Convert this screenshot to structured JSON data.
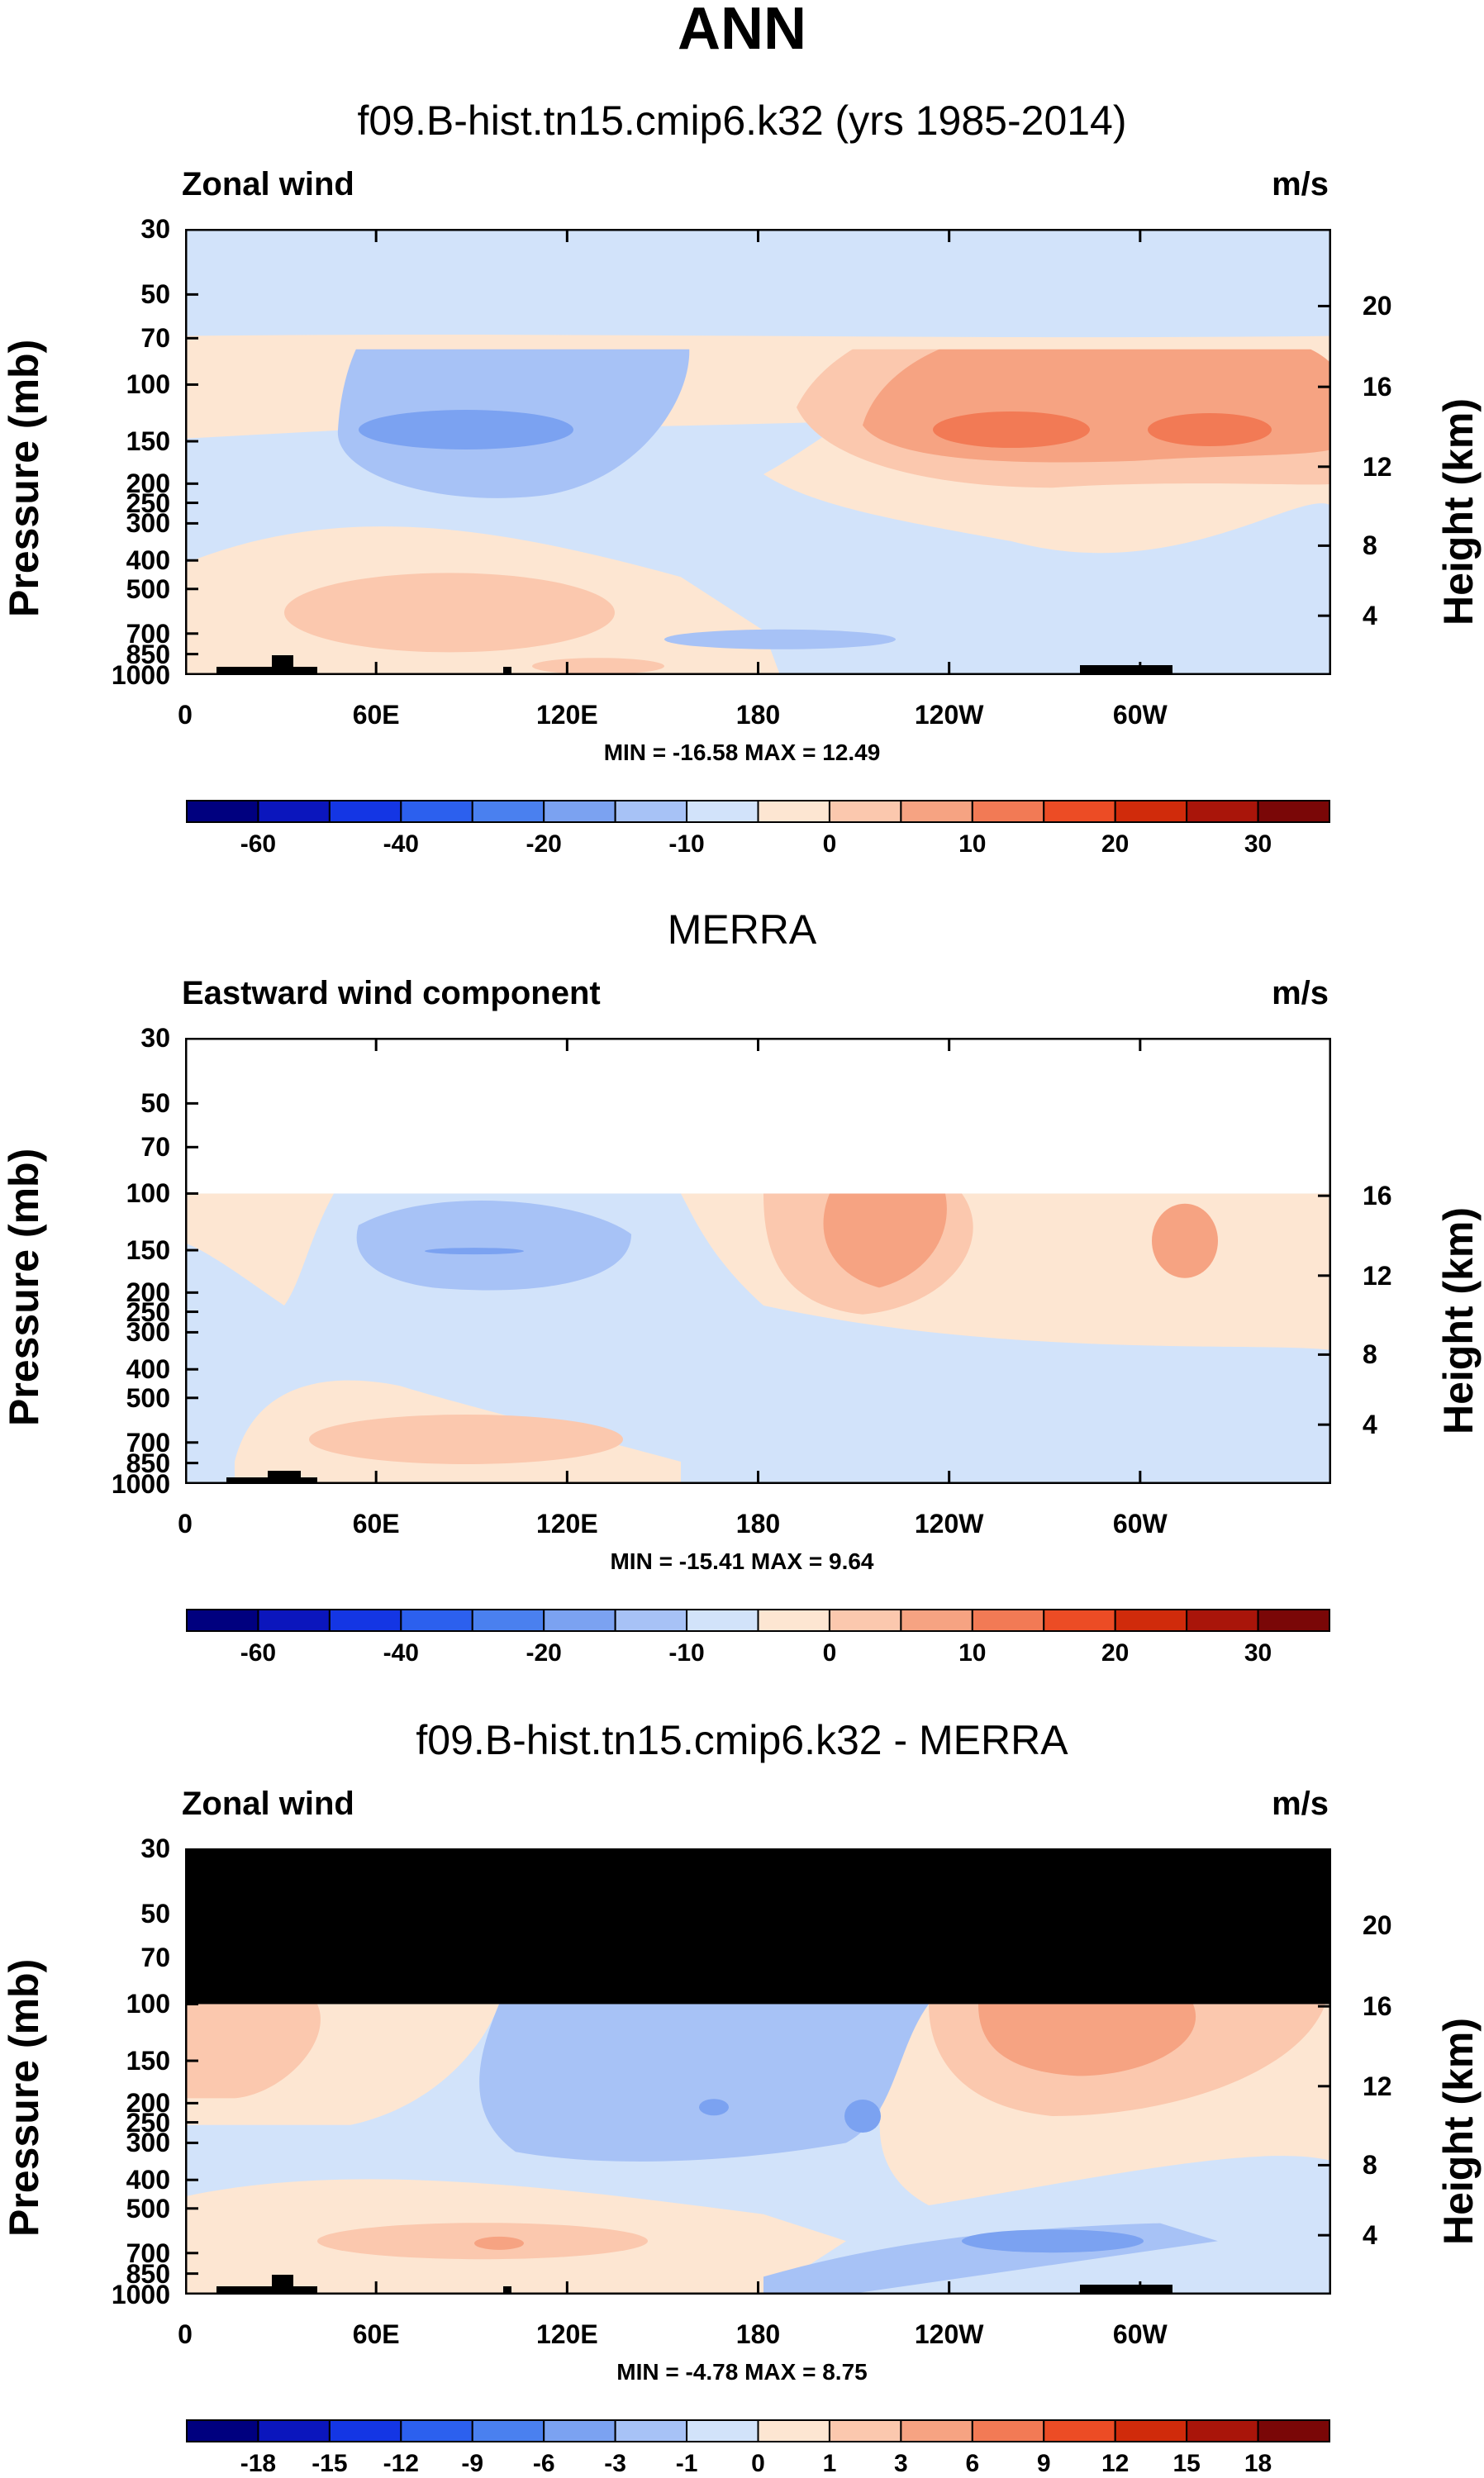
{
  "title": "ANN",
  "colors": {
    "levels": [
      "#00007f",
      "#0b16bd",
      "#1436e4",
      "#2c60ee",
      "#4a80ef",
      "#7ba2f1",
      "#a7c2f6",
      "#d2e3fa",
      "#fde6d2",
      "#fbc8ae",
      "#f6a382",
      "#f27a55",
      "#ec4c25",
      "#d02b0b",
      "#a9150a",
      "#7a0707"
    ]
  },
  "panels": [
    {
      "title": "f09.B-hist.tn15.cmip6.k32 (yrs 1985-2014)",
      "left_label": "Zonal wind",
      "units": "m/s",
      "minmax": "MIN = -16.58  MAX =  12.49",
      "ylabel": "Pressure (mb)",
      "rlabel": "Height (km)",
      "yticks": [
        "30",
        "50",
        "70",
        "100",
        "150",
        "200",
        "250",
        "300",
        "400",
        "500",
        "700",
        "850",
        "1000"
      ],
      "hticks": [
        "20",
        "16",
        "12",
        "8",
        "4"
      ],
      "xticks": [
        "0",
        "60E",
        "120E",
        "180",
        "120W",
        "60W"
      ],
      "colorbar_labels": [
        "-60",
        "-40",
        "-20",
        "-10",
        "0",
        "10",
        "20",
        "30"
      ]
    },
    {
      "title": "MERRA",
      "left_label": "Eastward wind component",
      "units": "m/s",
      "minmax": "MIN = -15.41  MAX =   9.64",
      "ylabel": "Pressure (mb)",
      "rlabel": "Height (km)",
      "yticks": [
        "30",
        "50",
        "70",
        "100",
        "150",
        "200",
        "250",
        "300",
        "400",
        "500",
        "700",
        "850",
        "1000"
      ],
      "hticks": [
        "16",
        "12",
        "8",
        "4"
      ],
      "xticks": [
        "0",
        "60E",
        "120E",
        "180",
        "120W",
        "60W"
      ],
      "colorbar_labels": [
        "-60",
        "-40",
        "-20",
        "-10",
        "0",
        "10",
        "20",
        "30"
      ]
    },
    {
      "title": "f09.B-hist.tn15.cmip6.k32 - MERRA",
      "left_label": "Zonal wind",
      "units": "m/s",
      "minmax": "MIN =  -4.78  MAX =   8.75",
      "ylabel": "Pressure (mb)",
      "rlabel": "Height (km)",
      "yticks": [
        "30",
        "50",
        "70",
        "100",
        "150",
        "200",
        "250",
        "300",
        "400",
        "500",
        "700",
        "850",
        "1000"
      ],
      "hticks": [
        "20",
        "16",
        "12",
        "8",
        "4"
      ],
      "xticks": [
        "0",
        "60E",
        "120E",
        "180",
        "120W",
        "60W"
      ],
      "colorbar_labels": [
        "-18",
        "-15",
        "-12",
        "-9",
        "-6",
        "-3",
        "-1",
        "0",
        "1",
        "3",
        "6",
        "9",
        "12",
        "15",
        "18"
      ]
    }
  ],
  "chart_data": [
    {
      "type": "heatmap",
      "title": "f09.B-hist.tn15.cmip6.k32 (yrs 1985-2014)",
      "variable": "Zonal wind",
      "units": "m/s",
      "x_ticks": [
        "0",
        "60E",
        "120E",
        "180",
        "120W",
        "60W"
      ],
      "y_ticks": [
        "30",
        "50",
        "70",
        "100",
        "150",
        "200",
        "250",
        "300",
        "400",
        "500",
        "700",
        "850",
        "1000"
      ],
      "y_right_ticks": [
        "20",
        "16",
        "12",
        "8",
        "4"
      ],
      "ylabel": "Pressure (mb)",
      "ylabel_right": "Height (km)",
      "min": -16.58,
      "max": 12.49,
      "colorbar_levels": [
        -60,
        -50,
        -40,
        -30,
        -20,
        -15,
        -10,
        -5,
        0,
        5,
        10,
        15,
        20,
        25,
        30
      ],
      "colorbar_labels": [
        "-60",
        "-40",
        "-20",
        "-10",
        "0",
        "10",
        "20",
        "30"
      ]
    },
    {
      "type": "heatmap",
      "title": "MERRA",
      "variable": "Eastward wind component",
      "units": "m/s",
      "x_ticks": [
        "0",
        "60E",
        "120E",
        "180",
        "120W",
        "60W"
      ],
      "y_ticks": [
        "30",
        "50",
        "70",
        "100",
        "150",
        "200",
        "250",
        "300",
        "400",
        "500",
        "700",
        "850",
        "1000"
      ],
      "y_right_ticks": [
        "16",
        "12",
        "8",
        "4"
      ],
      "ylabel": "Pressure (mb)",
      "ylabel_right": "Height (km)",
      "min": -15.41,
      "max": 9.64,
      "colorbar_levels": [
        -60,
        -50,
        -40,
        -30,
        -20,
        -15,
        -10,
        -5,
        0,
        5,
        10,
        15,
        20,
        25,
        30
      ],
      "colorbar_labels": [
        "-60",
        "-40",
        "-20",
        "-10",
        "0",
        "10",
        "20",
        "30"
      ]
    },
    {
      "type": "heatmap",
      "title": "f09.B-hist.tn15.cmip6.k32 - MERRA",
      "variable": "Zonal wind",
      "units": "m/s",
      "x_ticks": [
        "0",
        "60E",
        "120E",
        "180",
        "120W",
        "60W"
      ],
      "y_ticks": [
        "30",
        "50",
        "70",
        "100",
        "150",
        "200",
        "250",
        "300",
        "400",
        "500",
        "700",
        "850",
        "1000"
      ],
      "y_right_ticks": [
        "20",
        "16",
        "12",
        "8",
        "4"
      ],
      "ylabel": "Pressure (mb)",
      "ylabel_right": "Height (km)",
      "min": -4.78,
      "max": 8.75,
      "colorbar_levels": [
        -18,
        -15,
        -12,
        -9,
        -6,
        -3,
        -1,
        0,
        1,
        3,
        6,
        9,
        12,
        15,
        18
      ],
      "colorbar_labels": [
        "-18",
        "-15",
        "-12",
        "-9",
        "-6",
        "-3",
        "-1",
        "0",
        "1",
        "3",
        "6",
        "9",
        "12",
        "15",
        "18"
      ]
    }
  ]
}
